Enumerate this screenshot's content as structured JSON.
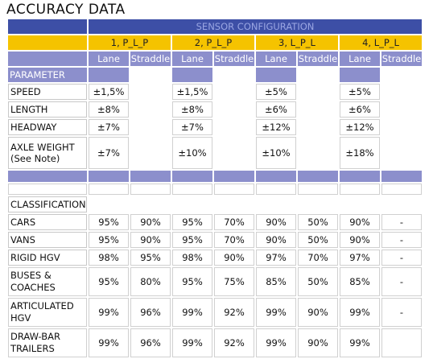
{
  "title": "ACCURACY DATA",
  "header": {
    "sensor_config": "SENSOR CONFIGURATION",
    "configs": [
      "1, P_L_P",
      "2, P_L_P",
      "3, L_P_L",
      "4, L_P_L"
    ],
    "lane": "Lane",
    "straddle": "Straddle"
  },
  "parameter": {
    "heading": "PARAMETER",
    "speed": {
      "label": "SPEED",
      "v": [
        "±1,5%",
        "±1,5%",
        "±5%",
        "±5%"
      ]
    },
    "length": {
      "label": "LENGTH",
      "v": [
        "±8%",
        "±8%",
        "±6%",
        "±6%"
      ]
    },
    "headway": {
      "label": "HEADWAY",
      "v": [
        "±7%",
        "±7%",
        "±12%",
        "±12%"
      ]
    },
    "axle": {
      "label1": "AXLE WEIGHT",
      "label2": "(See Note)",
      "v": [
        "±7%",
        "±10%",
        "±10%",
        "±18%"
      ]
    }
  },
  "classification": {
    "heading": "CLASSIFICATION",
    "cars": {
      "label": "CARS",
      "v": [
        "95%",
        "90%",
        "95%",
        "70%",
        "90%",
        "50%",
        "90%",
        "-"
      ]
    },
    "vans": {
      "label": "VANS",
      "v": [
        "95%",
        "90%",
        "95%",
        "70%",
        "90%",
        "50%",
        "90%",
        "-"
      ]
    },
    "rigid": {
      "label": "RIGID HGV",
      "v": [
        "98%",
        "95%",
        "98%",
        "90%",
        "97%",
        "70%",
        "97%",
        "-"
      ]
    },
    "buses": {
      "label1": "BUSES &",
      "label2": "COACHES",
      "v": [
        "95%",
        "80%",
        "95%",
        "75%",
        "85%",
        "50%",
        "85%",
        "-"
      ]
    },
    "articulated": {
      "label1": "ARTICULATED",
      "label2": "HGV",
      "v": [
        "99%",
        "96%",
        "99%",
        "92%",
        "99%",
        "90%",
        "99%",
        "-"
      ]
    },
    "drawbar": {
      "label1": "DRAW-BAR",
      "label2": "TRAILERS",
      "v": [
        "99%",
        "96%",
        "99%",
        "92%",
        "99%",
        "90%",
        "99%",
        ""
      ]
    }
  },
  "colors": {
    "navy": "#3d4fa6",
    "gold": "#f5c300",
    "lavender": "#8c8fcc"
  }
}
